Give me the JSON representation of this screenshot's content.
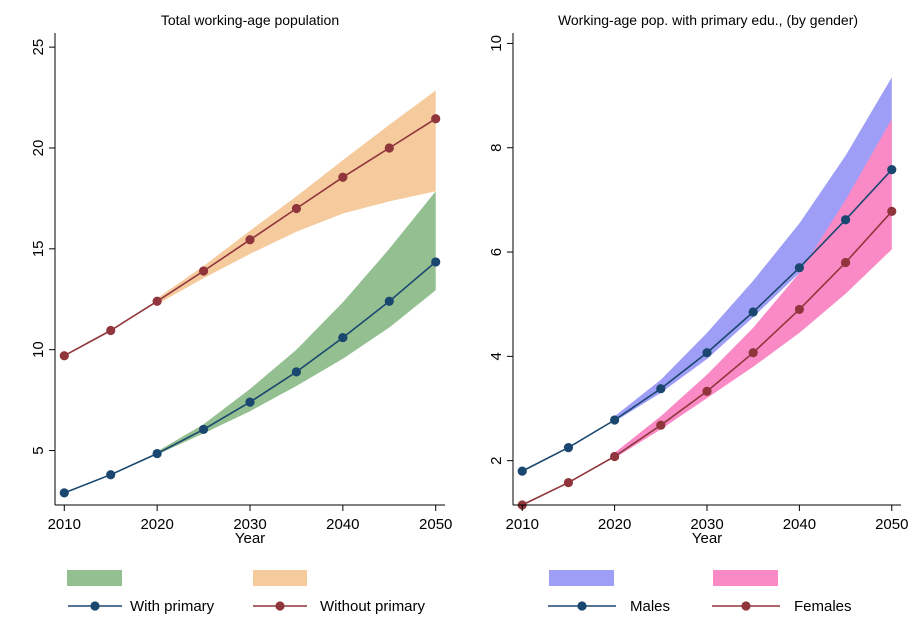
{
  "colors": {
    "blue_line": "#1a476f",
    "red_line": "#90353b",
    "green_band": "#93bf91",
    "orange_band": "#f5ca9d",
    "purple_band": "#9e9ef7",
    "pink_band": "#f98ac6"
  },
  "chart_data": [
    {
      "type": "line",
      "title": "Total working-age population",
      "xlabel": "Year",
      "ylabel": "",
      "xlim": [
        2009,
        2051
      ],
      "ylim": [
        2.3,
        25.7
      ],
      "xticks": [
        2010,
        2020,
        2030,
        2040,
        2050
      ],
      "yticks": [
        5,
        10,
        15,
        20,
        25
      ],
      "x": [
        2010,
        2015,
        2020,
        2025,
        2030,
        2035,
        2040,
        2045,
        2050
      ],
      "series": [
        {
          "name": "With primary",
          "color_key": "blue_line",
          "values": [
            2.9,
            3.8,
            4.85,
            6.05,
            7.4,
            8.9,
            10.6,
            12.4,
            14.35
          ]
        },
        {
          "name": "Without primary",
          "color_key": "red_line",
          "values": [
            9.7,
            10.95,
            12.4,
            13.9,
            15.45,
            17.0,
            18.55,
            20.0,
            21.45
          ]
        }
      ],
      "bands": [
        {
          "color_key": "green_band",
          "x": [
            2020,
            2025,
            2030,
            2035,
            2040,
            2045,
            2050
          ],
          "lower": [
            4.8,
            5.85,
            6.95,
            8.2,
            9.55,
            11.1,
            12.95
          ],
          "upper": [
            4.95,
            6.3,
            8.05,
            10.0,
            12.35,
            15.0,
            17.85
          ]
        },
        {
          "color_key": "orange_band",
          "x": [
            2020,
            2025,
            2030,
            2035,
            2040,
            2045,
            2050
          ],
          "lower": [
            12.25,
            13.55,
            14.75,
            15.85,
            16.75,
            17.35,
            17.85
          ],
          "upper": [
            12.55,
            14.15,
            15.9,
            17.6,
            19.4,
            21.15,
            22.85
          ]
        }
      ],
      "legend": {
        "placement": "bottom",
        "band_entries": [
          {
            "color_key": "green_band",
            "label": ""
          },
          {
            "color_key": "orange_band",
            "label": ""
          }
        ],
        "line_entries": [
          {
            "color_key": "blue_line",
            "label": "With primary"
          },
          {
            "color_key": "red_line",
            "label": "Without primary"
          }
        ]
      }
    },
    {
      "type": "line",
      "title": "Working-age pop. with primary edu., (by gender)",
      "xlabel": "Year",
      "ylabel": "",
      "xlim": [
        2009,
        2051
      ],
      "ylim": [
        1.15,
        10.2
      ],
      "xticks": [
        2010,
        2020,
        2030,
        2040,
        2050
      ],
      "yticks": [
        2,
        4,
        6,
        8,
        10
      ],
      "x": [
        2010,
        2015,
        2020,
        2025,
        2030,
        2035,
        2040,
        2045,
        2050
      ],
      "series": [
        {
          "name": "Males",
          "color_key": "blue_line",
          "values": [
            1.8,
            2.25,
            2.78,
            3.38,
            4.07,
            4.85,
            5.7,
            6.62,
            7.58
          ]
        },
        {
          "name": "Females",
          "color_key": "red_line",
          "values": [
            1.15,
            1.58,
            2.08,
            2.68,
            3.33,
            4.07,
            4.9,
            5.8,
            6.78
          ]
        }
      ],
      "bands": [
        {
          "color_key": "purple_band",
          "x": [
            2020,
            2025,
            2030,
            2035,
            2040,
            2045,
            2050
          ],
          "lower": [
            2.75,
            3.3,
            3.95,
            4.75,
            5.6,
            6.55,
            7.6
          ],
          "upper": [
            2.85,
            3.55,
            4.45,
            5.45,
            6.55,
            7.85,
            9.35
          ]
        },
        {
          "color_key": "pink_band",
          "x": [
            2020,
            2025,
            2030,
            2035,
            2040,
            2045,
            2050
          ],
          "lower": [
            2.05,
            2.6,
            3.2,
            3.8,
            4.45,
            5.2,
            6.05
          ],
          "upper": [
            2.15,
            2.85,
            3.65,
            4.55,
            5.6,
            7.0,
            8.55
          ]
        }
      ],
      "legend": {
        "placement": "bottom",
        "band_entries": [
          {
            "color_key": "purple_band",
            "label": ""
          },
          {
            "color_key": "pink_band",
            "label": ""
          }
        ],
        "line_entries": [
          {
            "color_key": "blue_line",
            "label": "Males"
          },
          {
            "color_key": "red_line",
            "label": "Females"
          }
        ]
      }
    }
  ]
}
